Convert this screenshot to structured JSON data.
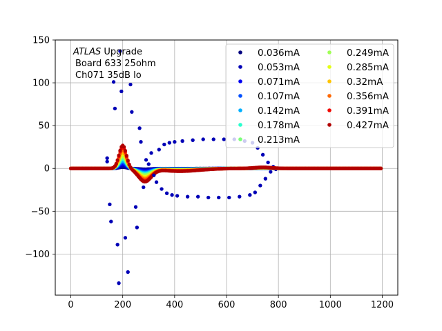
{
  "chart_data": {
    "type": "scatter",
    "title": "",
    "xlabel": "",
    "ylabel": "",
    "xlim": [
      -60,
      1260
    ],
    "ylim": [
      -148,
      150
    ],
    "x_ticks": [
      0,
      200,
      400,
      600,
      800,
      1000,
      1200
    ],
    "y_ticks": [
      -100,
      -50,
      0,
      50,
      100,
      150
    ],
    "x_tick_labels": [
      "0",
      "200",
      "400",
      "600",
      "800",
      "1000",
      "1200"
    ],
    "y_tick_labels": [
      "−100",
      "−50",
      "0",
      "50",
      "100",
      "150"
    ],
    "grid": true,
    "legend_placement": "top-right",
    "legend_columns": 2,
    "annotation": {
      "line1_italic": "ATLAS",
      "line1_rest": " Upgrade",
      "line2": "Board 633 25ohm",
      "line3": "Ch071 35dB lo"
    },
    "pulse_shape": {
      "x_start": 0,
      "x_end": 1195,
      "step": 5,
      "peak_x": 200,
      "undershoot_x": 285,
      "recovery_x": 900,
      "late_bump_x": 740
    },
    "outlier_series": {
      "series_index": 0,
      "points": [
        [
          140,
          12
        ],
        [
          140,
          8
        ],
        [
          150,
          -42
        ],
        [
          155,
          -62
        ],
        [
          165,
          101
        ],
        [
          170,
          70
        ],
        [
          180,
          -89
        ],
        [
          185,
          -134
        ],
        [
          190,
          137
        ],
        [
          195,
          90
        ],
        [
          210,
          -81
        ],
        [
          220,
          -121
        ],
        [
          230,
          98
        ],
        [
          235,
          66
        ],
        [
          250,
          -45
        ],
        [
          255,
          -69
        ],
        [
          265,
          47
        ],
        [
          270,
          31
        ],
        [
          280,
          -22
        ],
        [
          290,
          10
        ],
        [
          300,
          5
        ],
        [
          310,
          18
        ],
        [
          320,
          -8
        ],
        [
          330,
          -16
        ],
        [
          340,
          22
        ],
        [
          350,
          -24
        ],
        [
          360,
          28
        ],
        [
          370,
          -29
        ],
        [
          380,
          30
        ],
        [
          390,
          -31
        ],
        [
          400,
          31
        ],
        [
          410,
          -32
        ],
        [
          430,
          32
        ],
        [
          450,
          -33
        ],
        [
          470,
          33
        ],
        [
          490,
          -33
        ],
        [
          510,
          34
        ],
        [
          530,
          -34
        ],
        [
          550,
          34
        ],
        [
          570,
          -34
        ],
        [
          590,
          34
        ],
        [
          610,
          -34
        ],
        [
          630,
          34
        ],
        [
          650,
          -33
        ],
        [
          670,
          32
        ],
        [
          690,
          -31
        ],
        [
          700,
          30
        ],
        [
          710,
          -28
        ],
        [
          720,
          24
        ],
        [
          730,
          -20
        ],
        [
          740,
          16
        ],
        [
          750,
          -12
        ],
        [
          760,
          7
        ],
        [
          770,
          -4
        ],
        [
          780,
          2
        ],
        [
          790,
          -1
        ]
      ]
    },
    "series": [
      {
        "name": "0.036mA",
        "color": "#00007f",
        "amplitude": 1.5
      },
      {
        "name": "0.053mA",
        "color": "#0000b6",
        "amplitude": 3.0
      },
      {
        "name": "0.071mA",
        "color": "#0000f1",
        "amplitude": 5.0
      },
      {
        "name": "0.107mA",
        "color": "#0050ff",
        "amplitude": 7.0
      },
      {
        "name": "0.142mA",
        "color": "#00b0ff",
        "amplitude": 9.0
      },
      {
        "name": "0.178mA",
        "color": "#29ffce",
        "amplitude": 11.0
      },
      {
        "name": "0.213mA",
        "color": "#7dff7a",
        "amplitude": 13.0
      },
      {
        "name": "0.249mA",
        "color": "#a0ff56",
        "amplitude": 15.0
      },
      {
        "name": "0.285mA",
        "color": "#e4ff13",
        "amplitude": 17.0
      },
      {
        "name": "0.32mA",
        "color": "#ffc400",
        "amplitude": 19.0
      },
      {
        "name": "0.356mA",
        "color": "#ff6800",
        "amplitude": 22.0
      },
      {
        "name": "0.391mA",
        "color": "#f10800",
        "amplitude": 25.0
      },
      {
        "name": "0.427mA",
        "color": "#b20000",
        "amplitude": 27.0
      }
    ]
  }
}
